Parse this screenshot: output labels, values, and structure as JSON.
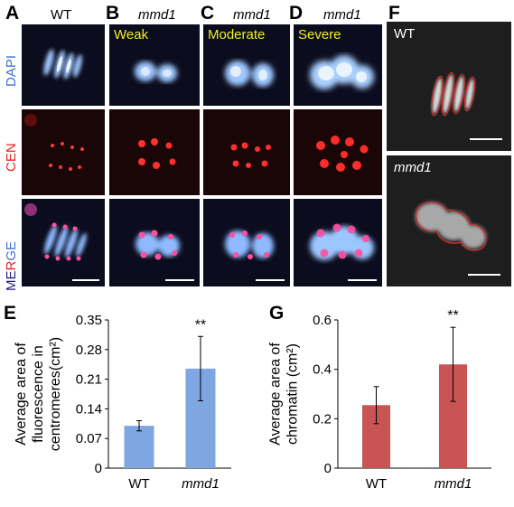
{
  "panels": {
    "A": {
      "letter": "A",
      "title": "WT"
    },
    "B": {
      "letter": "B",
      "title": "mmd1",
      "severity": "Weak"
    },
    "C": {
      "letter": "C",
      "title": "mmd1",
      "severity": "Moderate"
    },
    "D": {
      "letter": "D",
      "title": "mmd1",
      "severity": "Severe"
    },
    "F": {
      "letter": "F",
      "top_label": "WT",
      "bottom_label": "mmd1"
    }
  },
  "row_labels": {
    "dapi": "DAPI",
    "cen": "CEN",
    "merge_m": "M",
    "merge_e": "E",
    "merge_r": "R",
    "merge_g": "G",
    "merge_e2": "E"
  },
  "colors": {
    "dapi_blue": "#3d6fd8",
    "cen_red": "#e52222",
    "merge_navy": "#22207a",
    "severity_yellow": "#f2ee23",
    "bar_blue": "#7ea6e0",
    "bar_red": "#c85454"
  },
  "chart_data": [
    {
      "panel": "E",
      "type": "bar",
      "categories": [
        "WT",
        "mmd1"
      ],
      "values": [
        0.1,
        0.235
      ],
      "error": [
        0.012,
        0.076
      ],
      "significance": [
        "",
        "**"
      ],
      "ylabel_lines": [
        "Average area of",
        "fluorescence in",
        "centromeres(cm²)"
      ],
      "ylim": [
        0,
        0.35
      ],
      "yticks": [
        "0",
        "0.07",
        "0.14",
        "0.21",
        "0.28",
        "0.35"
      ],
      "color": "#7ea6e0"
    },
    {
      "panel": "G",
      "type": "bar",
      "categories": [
        "WT",
        "mmd1"
      ],
      "values": [
        0.255,
        0.42
      ],
      "error": [
        0.075,
        0.15
      ],
      "significance": [
        "",
        "**"
      ],
      "ylabel_lines": [
        "Average area of",
        "chromatin (cm²)"
      ],
      "ylim": [
        0,
        0.6
      ],
      "yticks": [
        "0",
        "0.2",
        "0.4",
        "0.6"
      ],
      "color": "#c85454"
    }
  ]
}
